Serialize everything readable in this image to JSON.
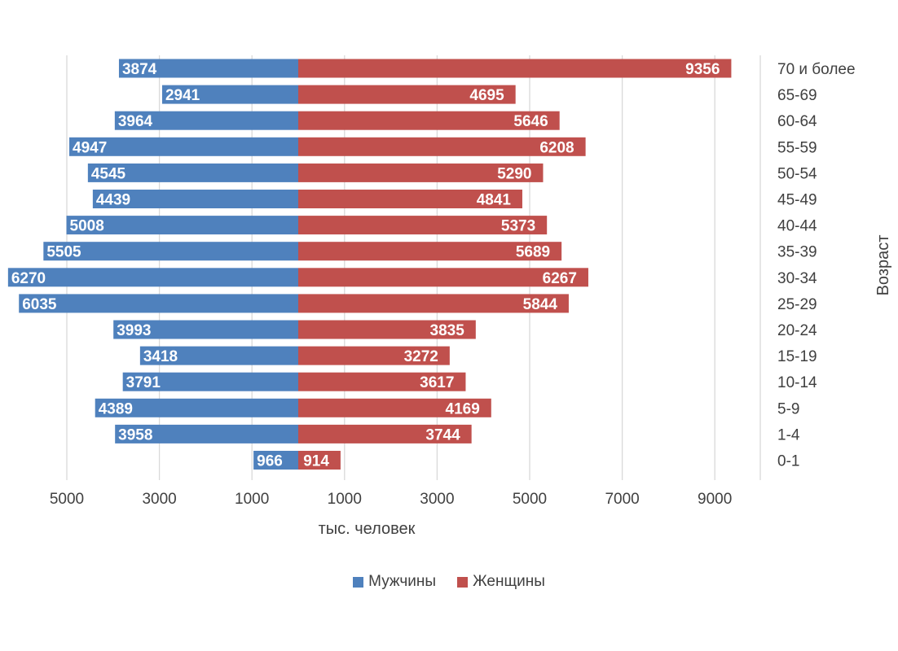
{
  "chart_data": {
    "type": "bar",
    "orientation": "horizontal",
    "layout": "population-pyramid",
    "categories": [
      "70 и более",
      "65-69",
      "60-64",
      "55-59",
      "50-54",
      "45-49",
      "40-44",
      "35-39",
      "30-34",
      "25-29",
      "20-24",
      "15-19",
      "10-14",
      "5-9",
      "1-4",
      "0-1"
    ],
    "series": [
      {
        "name": "Мужчины",
        "color": "#4f81bd",
        "side": "left",
        "values": [
          3874,
          2941,
          3964,
          4947,
          4545,
          4439,
          5008,
          5505,
          6270,
          6035,
          3993,
          3418,
          3791,
          4389,
          3958,
          966
        ]
      },
      {
        "name": "Женщины",
        "color": "#c0504d",
        "side": "right",
        "values": [
          9356,
          4695,
          5646,
          6208,
          5290,
          4841,
          5373,
          5689,
          6267,
          5844,
          3835,
          3272,
          3617,
          4169,
          3744,
          914
        ]
      }
    ],
    "xlabel": "тыс. человек",
    "ylabel": "Возраст",
    "x_tick_labels": [
      "5000",
      "3000",
      "1000",
      "1000",
      "3000",
      "5000",
      "7000",
      "9000"
    ],
    "x_tick_values": [
      -5000,
      -3000,
      -1000,
      1000,
      3000,
      5000,
      7000,
      9000
    ],
    "xlim": [
      -6400,
      10000
    ],
    "grid": true,
    "legend_position": "bottom"
  }
}
